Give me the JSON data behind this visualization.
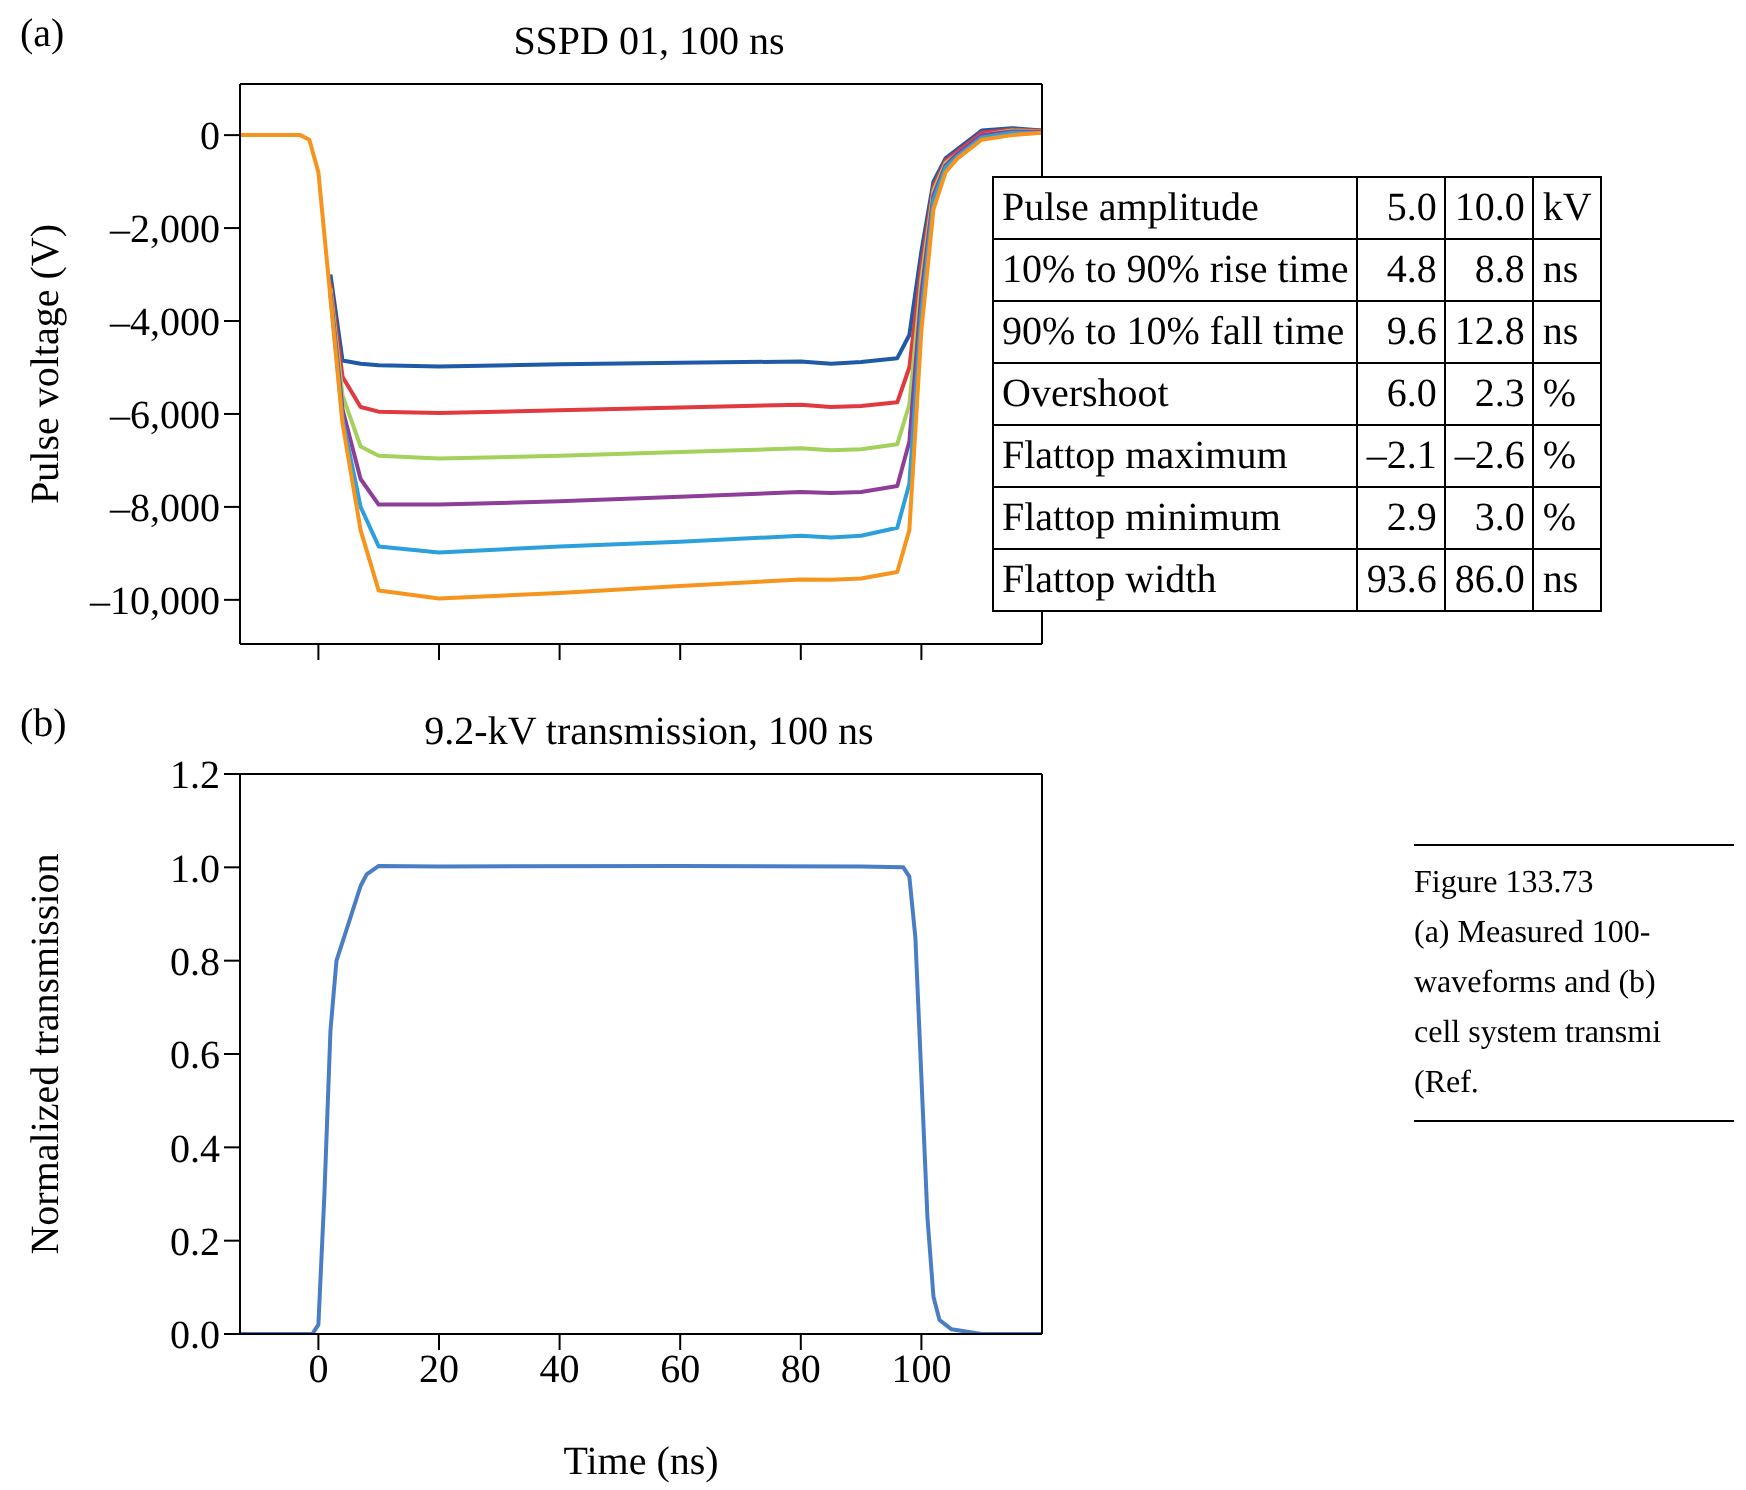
{
  "chart_data": [
    {
      "type": "line",
      "title": "SSPD 01, 100 ns",
      "ylabel": "Pulse voltage (V)",
      "annotations": [
        "(a)"
      ],
      "tick_labels": "y",
      "marker": "none",
      "line_style": "solid",
      "x": [
        -13,
        -3,
        -1.5,
        0,
        2,
        4,
        7,
        10,
        20,
        40,
        60,
        80,
        85,
        90,
        96,
        98,
        100,
        102,
        104,
        106,
        110,
        115,
        120
      ],
      "xlim": [
        -13,
        120
      ],
      "xticks": [
        {
          "value": 0,
          "label": null
        },
        {
          "value": 20,
          "label": null
        },
        {
          "value": 40,
          "label": null
        },
        {
          "value": 60,
          "label": null
        },
        {
          "value": 80,
          "label": null
        },
        {
          "value": 100,
          "label": null
        }
      ],
      "ylim": [
        -10950,
        1100
      ],
      "yticks": [
        {
          "value": 0,
          "label": "0"
        },
        {
          "value": -2000,
          "label": "–2,000"
        },
        {
          "value": -4000,
          "label": "–4,000"
        },
        {
          "value": -6000,
          "label": "–6,000"
        },
        {
          "value": -8000,
          "label": "–8,000"
        },
        {
          "value": -10000,
          "label": "–10,000"
        }
      ],
      "series": [
        {
          "color": "#1f5aa6",
          "values": [
            null,
            null,
            null,
            null,
            -3000,
            -4850,
            -4920,
            -4950,
            -4980,
            -4930,
            -4900,
            -4870,
            -4920,
            -4880,
            -4800,
            -4300,
            -2500,
            -1000,
            -500,
            -300,
            100,
            150,
            100
          ]
        },
        {
          "color": "#e0393e",
          "values": [
            null,
            null,
            null,
            null,
            -3200,
            -5200,
            -5850,
            -5950,
            -5980,
            -5920,
            -5860,
            -5800,
            -5850,
            -5830,
            -5750,
            -5000,
            -2800,
            -1100,
            -550,
            -350,
            50,
            120,
            100
          ]
        },
        {
          "color": "#a3d15c",
          "values": [
            null,
            null,
            null,
            null,
            -3300,
            -5600,
            -6700,
            -6900,
            -6960,
            -6900,
            -6820,
            -6740,
            -6780,
            -6760,
            -6650,
            -5800,
            -3100,
            -1200,
            -600,
            -400,
            0,
            100,
            80
          ]
        },
        {
          "color": "#8e3e98",
          "values": [
            null,
            null,
            null,
            null,
            -3400,
            -5900,
            -7400,
            -7950,
            -7950,
            -7880,
            -7780,
            -7680,
            -7700,
            -7680,
            -7550,
            -6600,
            -3400,
            -1300,
            -650,
            -400,
            0,
            80,
            70
          ]
        },
        {
          "color": "#2ba0dd",
          "values": [
            null,
            null,
            null,
            null,
            -3450,
            -6100,
            -8000,
            -8850,
            -8980,
            -8850,
            -8750,
            -8620,
            -8660,
            -8620,
            -8450,
            -7500,
            -3800,
            -1400,
            -700,
            -450,
            -50,
            50,
            50
          ]
        },
        {
          "color": "#f7941d",
          "values": [
            0,
            0,
            -100,
            -800,
            -3500,
            -6200,
            -8500,
            -9800,
            -9970,
            -9850,
            -9700,
            -9560,
            -9570,
            -9540,
            -9400,
            -8500,
            -4200,
            -1600,
            -800,
            -500,
            -100,
            0,
            50
          ]
        }
      ]
    },
    {
      "type": "line",
      "title": "9.2-kV transmission, 100 ns",
      "xlabel": "Time (ns)",
      "ylabel": "Normalized transmission",
      "annotations": [
        "(b)"
      ],
      "marker": "none",
      "line_style": "solid",
      "x": [
        -13,
        -1,
        0,
        1,
        2,
        3,
        5,
        7,
        8,
        10,
        20,
        60,
        90,
        97,
        98,
        99,
        100,
        101,
        102,
        103,
        105,
        110,
        120
      ],
      "xlim": [
        -13,
        120
      ],
      "xticks": [
        0,
        20,
        40,
        60,
        80,
        100
      ],
      "ylim": [
        0,
        1.2
      ],
      "yticks": [
        {
          "value": 0,
          "label": "0.0"
        },
        {
          "value": 0.2,
          "label": "0.2"
        },
        {
          "value": 0.4,
          "label": "0.4"
        },
        {
          "value": 0.6,
          "label": "0.6"
        },
        {
          "value": 0.8,
          "label": "0.8"
        },
        {
          "value": 1,
          "label": "1.0"
        },
        {
          "value": 1.2,
          "label": "1.2"
        }
      ],
      "series": [
        {
          "color": "#4a7ec4",
          "values": [
            0,
            0,
            0.02,
            0.3,
            0.65,
            0.8,
            0.88,
            0.96,
            0.985,
            1.003,
            1.002,
            1.003,
            1.002,
            1.0,
            0.98,
            0.85,
            0.55,
            0.25,
            0.08,
            0.03,
            0.01,
            0,
            0
          ]
        }
      ]
    },
    {
      "type": "other",
      "y_categories": [
        "Pulse amplitude",
        "10% to 90% rise time",
        "90% to 10% fall time",
        "Overshoot",
        "Flattop maximum",
        "Flattop minimum",
        "Flattop width"
      ],
      "cell_labels": [
        [
          "5.0",
          "10.0",
          "kV"
        ],
        [
          "4.8",
          "8.8",
          "ns"
        ],
        [
          "9.6",
          "12.8",
          "ns"
        ],
        [
          "6.0",
          "2.3",
          "%"
        ],
        [
          "–2.1",
          "–2.6",
          "%"
        ],
        [
          "2.9",
          "3.0",
          "%"
        ],
        [
          "93.6",
          "86.0",
          "ns"
        ]
      ]
    },
    {
      "type": "other",
      "title": "Figure 133.73",
      "annotations": [
        "(a) Measured 100-",
        "waveforms and (b)",
        "cell system transmi",
        "(Ref."
      ]
    }
  ]
}
